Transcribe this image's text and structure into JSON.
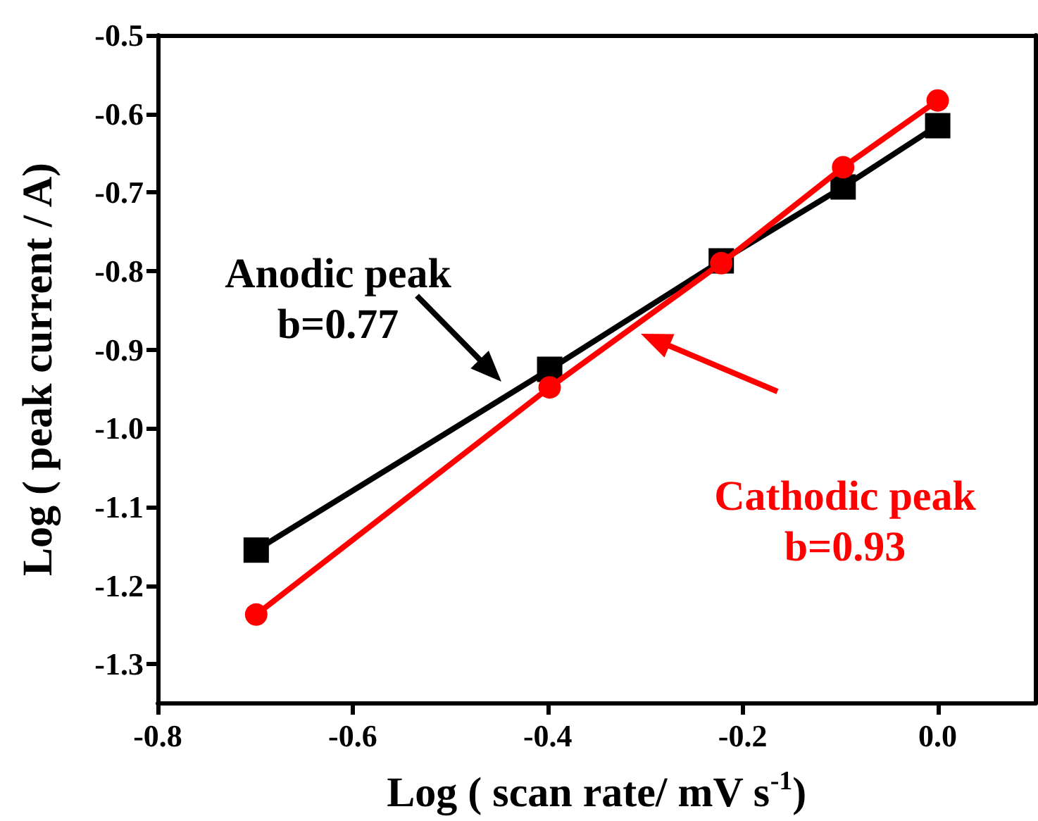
{
  "chart_data": {
    "type": "line",
    "xlabel": "Log ( scan rate/ mV s$^{-1}$)",
    "ylabel": "Log ( peak current / A)",
    "xlim": [
      -0.8,
      0.1
    ],
    "xticks": [
      -0.8,
      -0.6,
      -0.4,
      -0.2,
      {
        "value": 0,
        "label": "0.0"
      }
    ],
    "ylim": [
      -1.35,
      -0.5
    ],
    "yticks": [
      -1.3,
      -1.2,
      -1.1,
      {
        "value": -1,
        "label": "-1.0"
      },
      -0.9,
      -0.8,
      -0.7,
      -0.6,
      -0.5
    ],
    "x": [
      -0.699,
      -0.398,
      -0.222,
      -0.097,
      0.0
    ],
    "series": [
      {
        "color": "#000000",
        "marker": "square",
        "values": [
          -1.155,
          -0.925,
          -0.787,
          -0.693,
          -0.615
        ]
      },
      {
        "color": "#ff0000",
        "marker": "circle",
        "values": [
          -1.237,
          -0.948,
          -0.79,
          -0.668,
          -0.583
        ]
      }
    ],
    "annotations": [
      "Anodic peak\nb=0.77",
      "Cathodic peak\nb=0.93"
    ],
    "grid": false,
    "line_style": "solid"
  }
}
